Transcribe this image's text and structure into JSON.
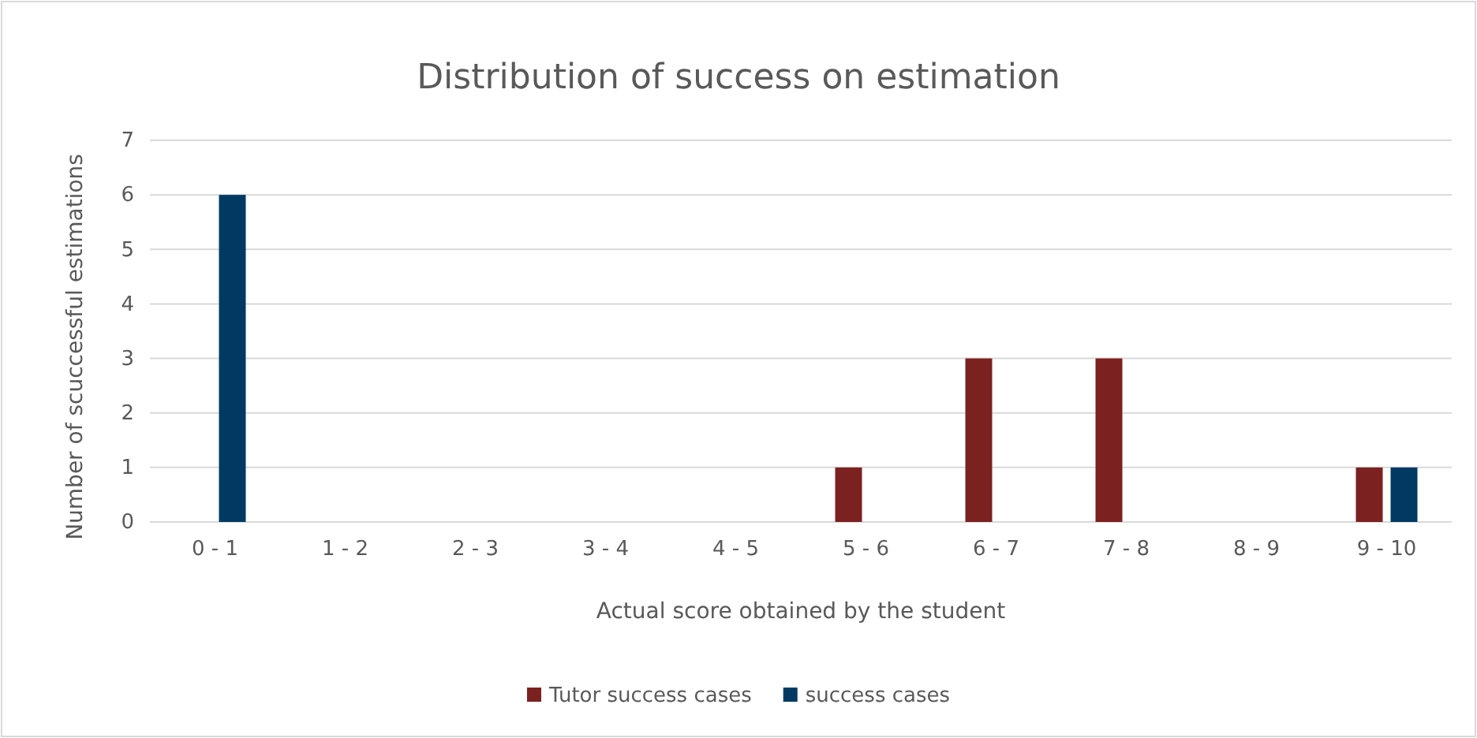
{
  "chart_data": {
    "type": "bar",
    "title": "Distribution of success on estimation",
    "xlabel": "Actual score obtained by the student",
    "ylabel": "Number of scuccessful estimations",
    "categories": [
      "0 - 1",
      "1 - 2",
      "2 - 3",
      "3 - 4",
      "4 - 5",
      "5 - 6",
      "6 - 7",
      "7 - 8",
      "8 - 9",
      "9 - 10"
    ],
    "series": [
      {
        "name": "Tutor success cases",
        "color": "#7b2120",
        "values": [
          0,
          0,
          0,
          0,
          0,
          1,
          3,
          3,
          0,
          1
        ]
      },
      {
        "name": "success cases",
        "color": "#003a63",
        "values": [
          6,
          0,
          0,
          0,
          0,
          0,
          0,
          0,
          0,
          1
        ]
      }
    ],
    "ylim": [
      0,
      7
    ],
    "yticks": [
      0,
      1,
      2,
      3,
      4,
      5,
      6,
      7
    ],
    "grid": "y",
    "legend": "bottom"
  }
}
